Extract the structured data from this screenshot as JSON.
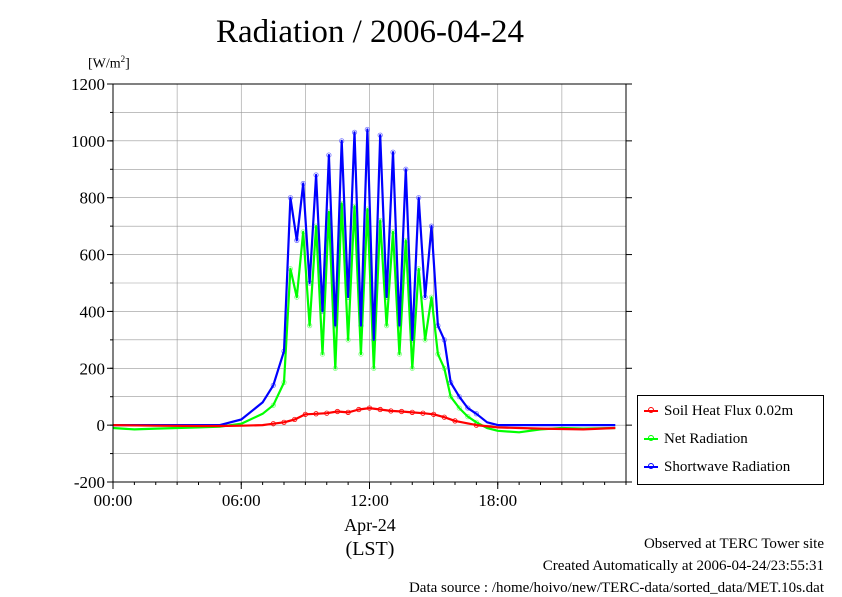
{
  "title": "Radiation / 2006-04-24",
  "unit": {
    "base": "[W/m",
    "sup": "2",
    "close": "]"
  },
  "colors": {
    "soil": "#ff0000",
    "net": "#00ff00",
    "short": "#0000ff",
    "short_points": "#7777ff",
    "net_points": "#88ff88",
    "grid": "#999999"
  },
  "date_label": "Apr-24",
  "tz_label": "(LST)",
  "footer": {
    "line1": "Observed at TERC Tower site",
    "line2": "Created Automatically at 2006-04-24/23:55:31",
    "line3": "Data source : /home/hoivo/new/TERC-data/sorted_data/MET.10s.dat"
  },
  "chart_data": {
    "type": "line",
    "title": "Radiation / 2006-04-24",
    "ylabel": "[W/m2]",
    "xlabel": "",
    "xlim": [
      0,
      24
    ],
    "ylim": [
      -200,
      1200
    ],
    "xticks": [
      0,
      6,
      12,
      18
    ],
    "xtick_labels": [
      "00:00",
      "06:00",
      "12:00",
      "18:00"
    ],
    "yticks": [
      -200,
      0,
      200,
      400,
      600,
      800,
      1000,
      1200
    ],
    "ytick_labels": [
      "-200",
      "0",
      "200",
      "400",
      "600",
      "800",
      "1000",
      "1200"
    ],
    "grid": true,
    "legend_position": "right-bottom-outside",
    "series": [
      {
        "name": "Soil Heat Flux 0.02m",
        "color": "#ff0000",
        "x": [
          0,
          2,
          4,
          5,
          6,
          7,
          7.5,
          8,
          8.5,
          9,
          9.5,
          10,
          10.5,
          11,
          11.5,
          12,
          12.5,
          13,
          13.5,
          14,
          14.5,
          15,
          15.5,
          16,
          17,
          18,
          19,
          20,
          22,
          23.5
        ],
        "y": [
          0,
          -2,
          -3,
          -3,
          -2,
          0,
          5,
          10,
          20,
          38,
          40,
          42,
          48,
          45,
          55,
          60,
          55,
          50,
          48,
          45,
          42,
          38,
          28,
          15,
          0,
          -8,
          -10,
          -12,
          -15,
          -10
        ]
      },
      {
        "name": "Net Radiation",
        "color": "#00ff00",
        "x": [
          0,
          1,
          2,
          4,
          5,
          6,
          7,
          7.5,
          8,
          8.3,
          8.6,
          8.9,
          9.2,
          9.5,
          9.8,
          10.1,
          10.4,
          10.7,
          11,
          11.3,
          11.6,
          11.9,
          12.2,
          12.5,
          12.8,
          13.1,
          13.4,
          13.7,
          14,
          14.3,
          14.6,
          14.9,
          15.2,
          15.5,
          15.8,
          16.2,
          16.6,
          17,
          17.5,
          18,
          19,
          20,
          21,
          22,
          23.5
        ],
        "y": [
          -10,
          -15,
          -12,
          -8,
          -5,
          5,
          40,
          70,
          150,
          550,
          450,
          680,
          350,
          700,
          250,
          750,
          200,
          780,
          300,
          770,
          250,
          760,
          200,
          720,
          350,
          680,
          250,
          650,
          200,
          550,
          300,
          450,
          250,
          200,
          100,
          60,
          30,
          10,
          -10,
          -20,
          -25,
          -15,
          -10,
          -12,
          -10
        ]
      },
      {
        "name": "Shortwave Radiation",
        "color": "#0000ff",
        "x": [
          0,
          2,
          4,
          5,
          6,
          7,
          7.5,
          8,
          8.3,
          8.6,
          8.9,
          9.2,
          9.5,
          9.8,
          10.1,
          10.4,
          10.7,
          11,
          11.3,
          11.6,
          11.9,
          12.2,
          12.5,
          12.8,
          13.1,
          13.4,
          13.7,
          14,
          14.3,
          14.6,
          14.9,
          15.2,
          15.5,
          15.8,
          16.2,
          16.6,
          17,
          17.5,
          18,
          19,
          20,
          22,
          23.5
        ],
        "y": [
          0,
          0,
          0,
          0,
          20,
          80,
          140,
          260,
          800,
          650,
          850,
          500,
          880,
          400,
          950,
          350,
          1000,
          450,
          1030,
          350,
          1040,
          300,
          1020,
          450,
          960,
          350,
          900,
          300,
          800,
          450,
          700,
          350,
          300,
          150,
          100,
          60,
          40,
          10,
          0,
          0,
          0,
          0,
          0
        ]
      }
    ]
  }
}
